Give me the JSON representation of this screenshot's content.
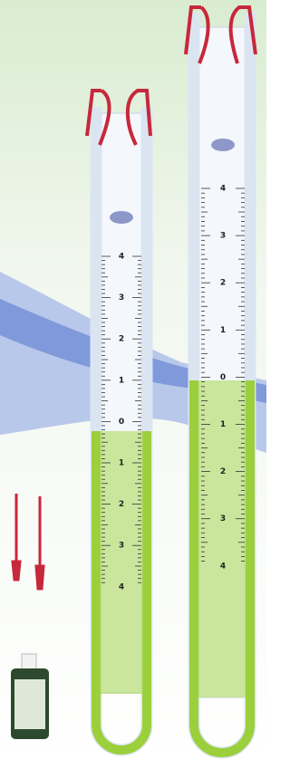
{
  "manometers": [
    {
      "scale_labels": [
        "4",
        "3",
        "2",
        "1",
        "0",
        "1",
        "2",
        "3",
        "4"
      ]
    },
    {
      "scale_labels": [
        "4",
        "3",
        "2",
        "1",
        "0",
        "1",
        "2",
        "3",
        "4"
      ]
    }
  ]
}
